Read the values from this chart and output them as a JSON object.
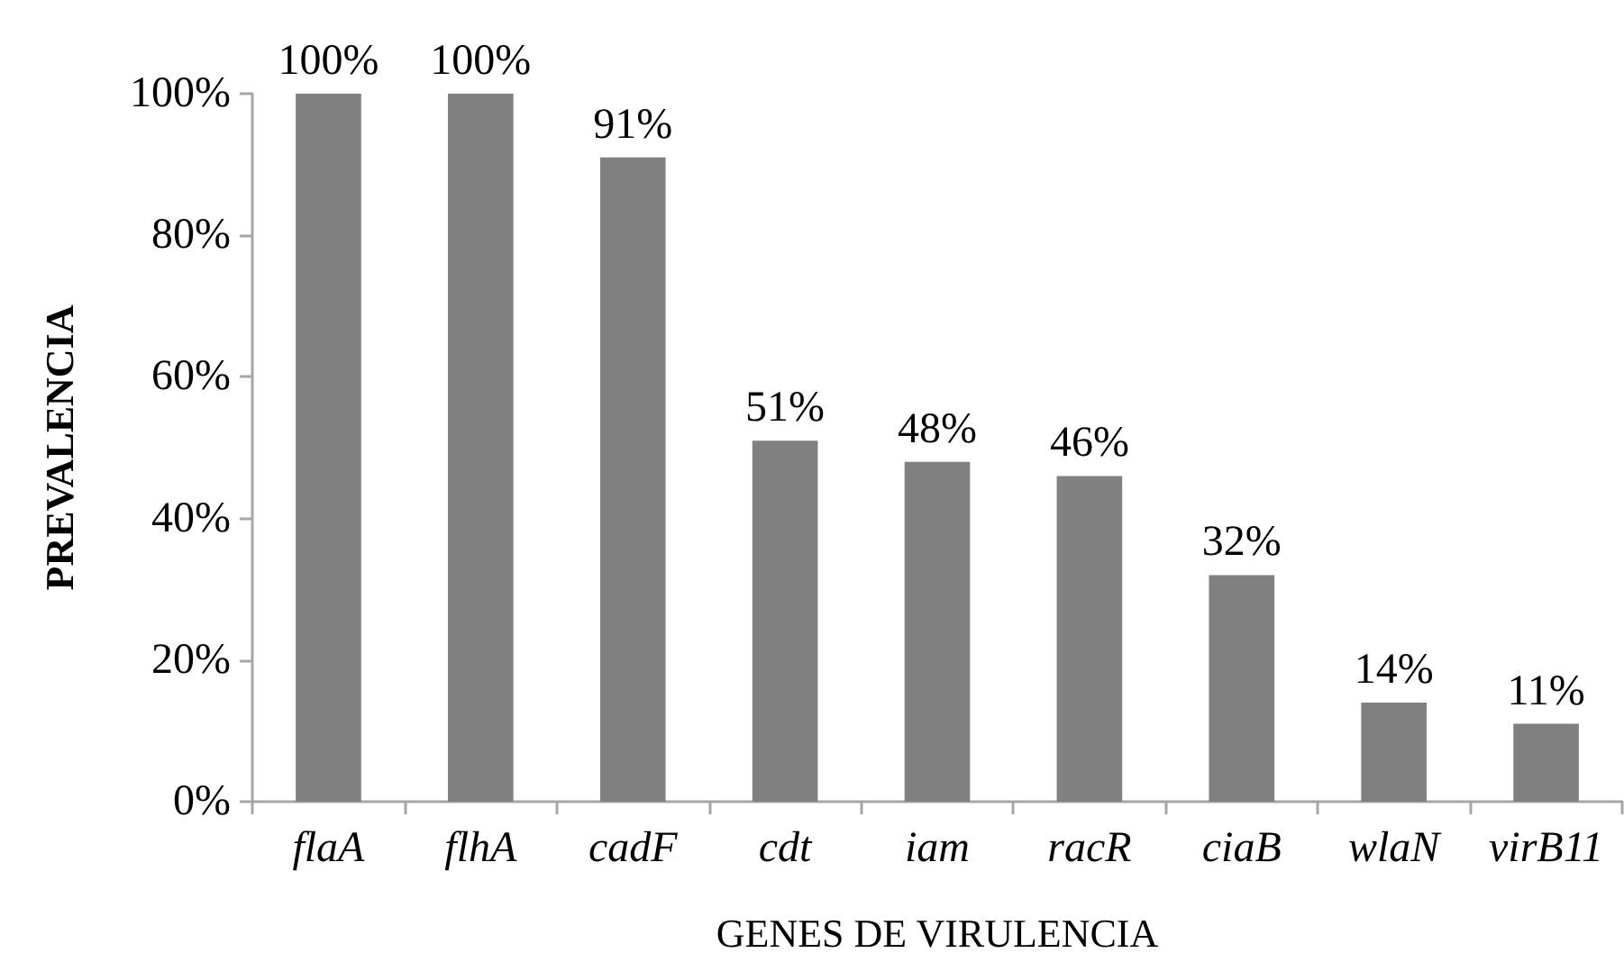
{
  "chart_data": {
    "type": "bar",
    "xlabel": "GENES DE VIRULENCIA",
    "ylabel": "PREVALENCIA",
    "categories": [
      "flaA",
      "flhA",
      "cadF",
      "cdt",
      "iam",
      "racR",
      "ciaB",
      "wlaN",
      "virB11"
    ],
    "values": [
      100,
      100,
      91,
      51,
      48,
      46,
      32,
      14,
      11
    ],
    "color": "#808080",
    "value_labels": [
      "100%",
      "100%",
      "91%",
      "51%",
      "48%",
      "46%",
      "32%",
      "14%",
      "11%"
    ],
    "ylim": [
      0,
      100
    ],
    "yticks": [
      {
        "value": 0,
        "label": "0%"
      },
      {
        "value": 20,
        "label": "20%"
      },
      {
        "value": 40,
        "label": "40%"
      },
      {
        "value": 60,
        "label": "60%"
      },
      {
        "value": 80,
        "label": "80%"
      },
      {
        "value": 100,
        "label": "100%"
      }
    ]
  }
}
